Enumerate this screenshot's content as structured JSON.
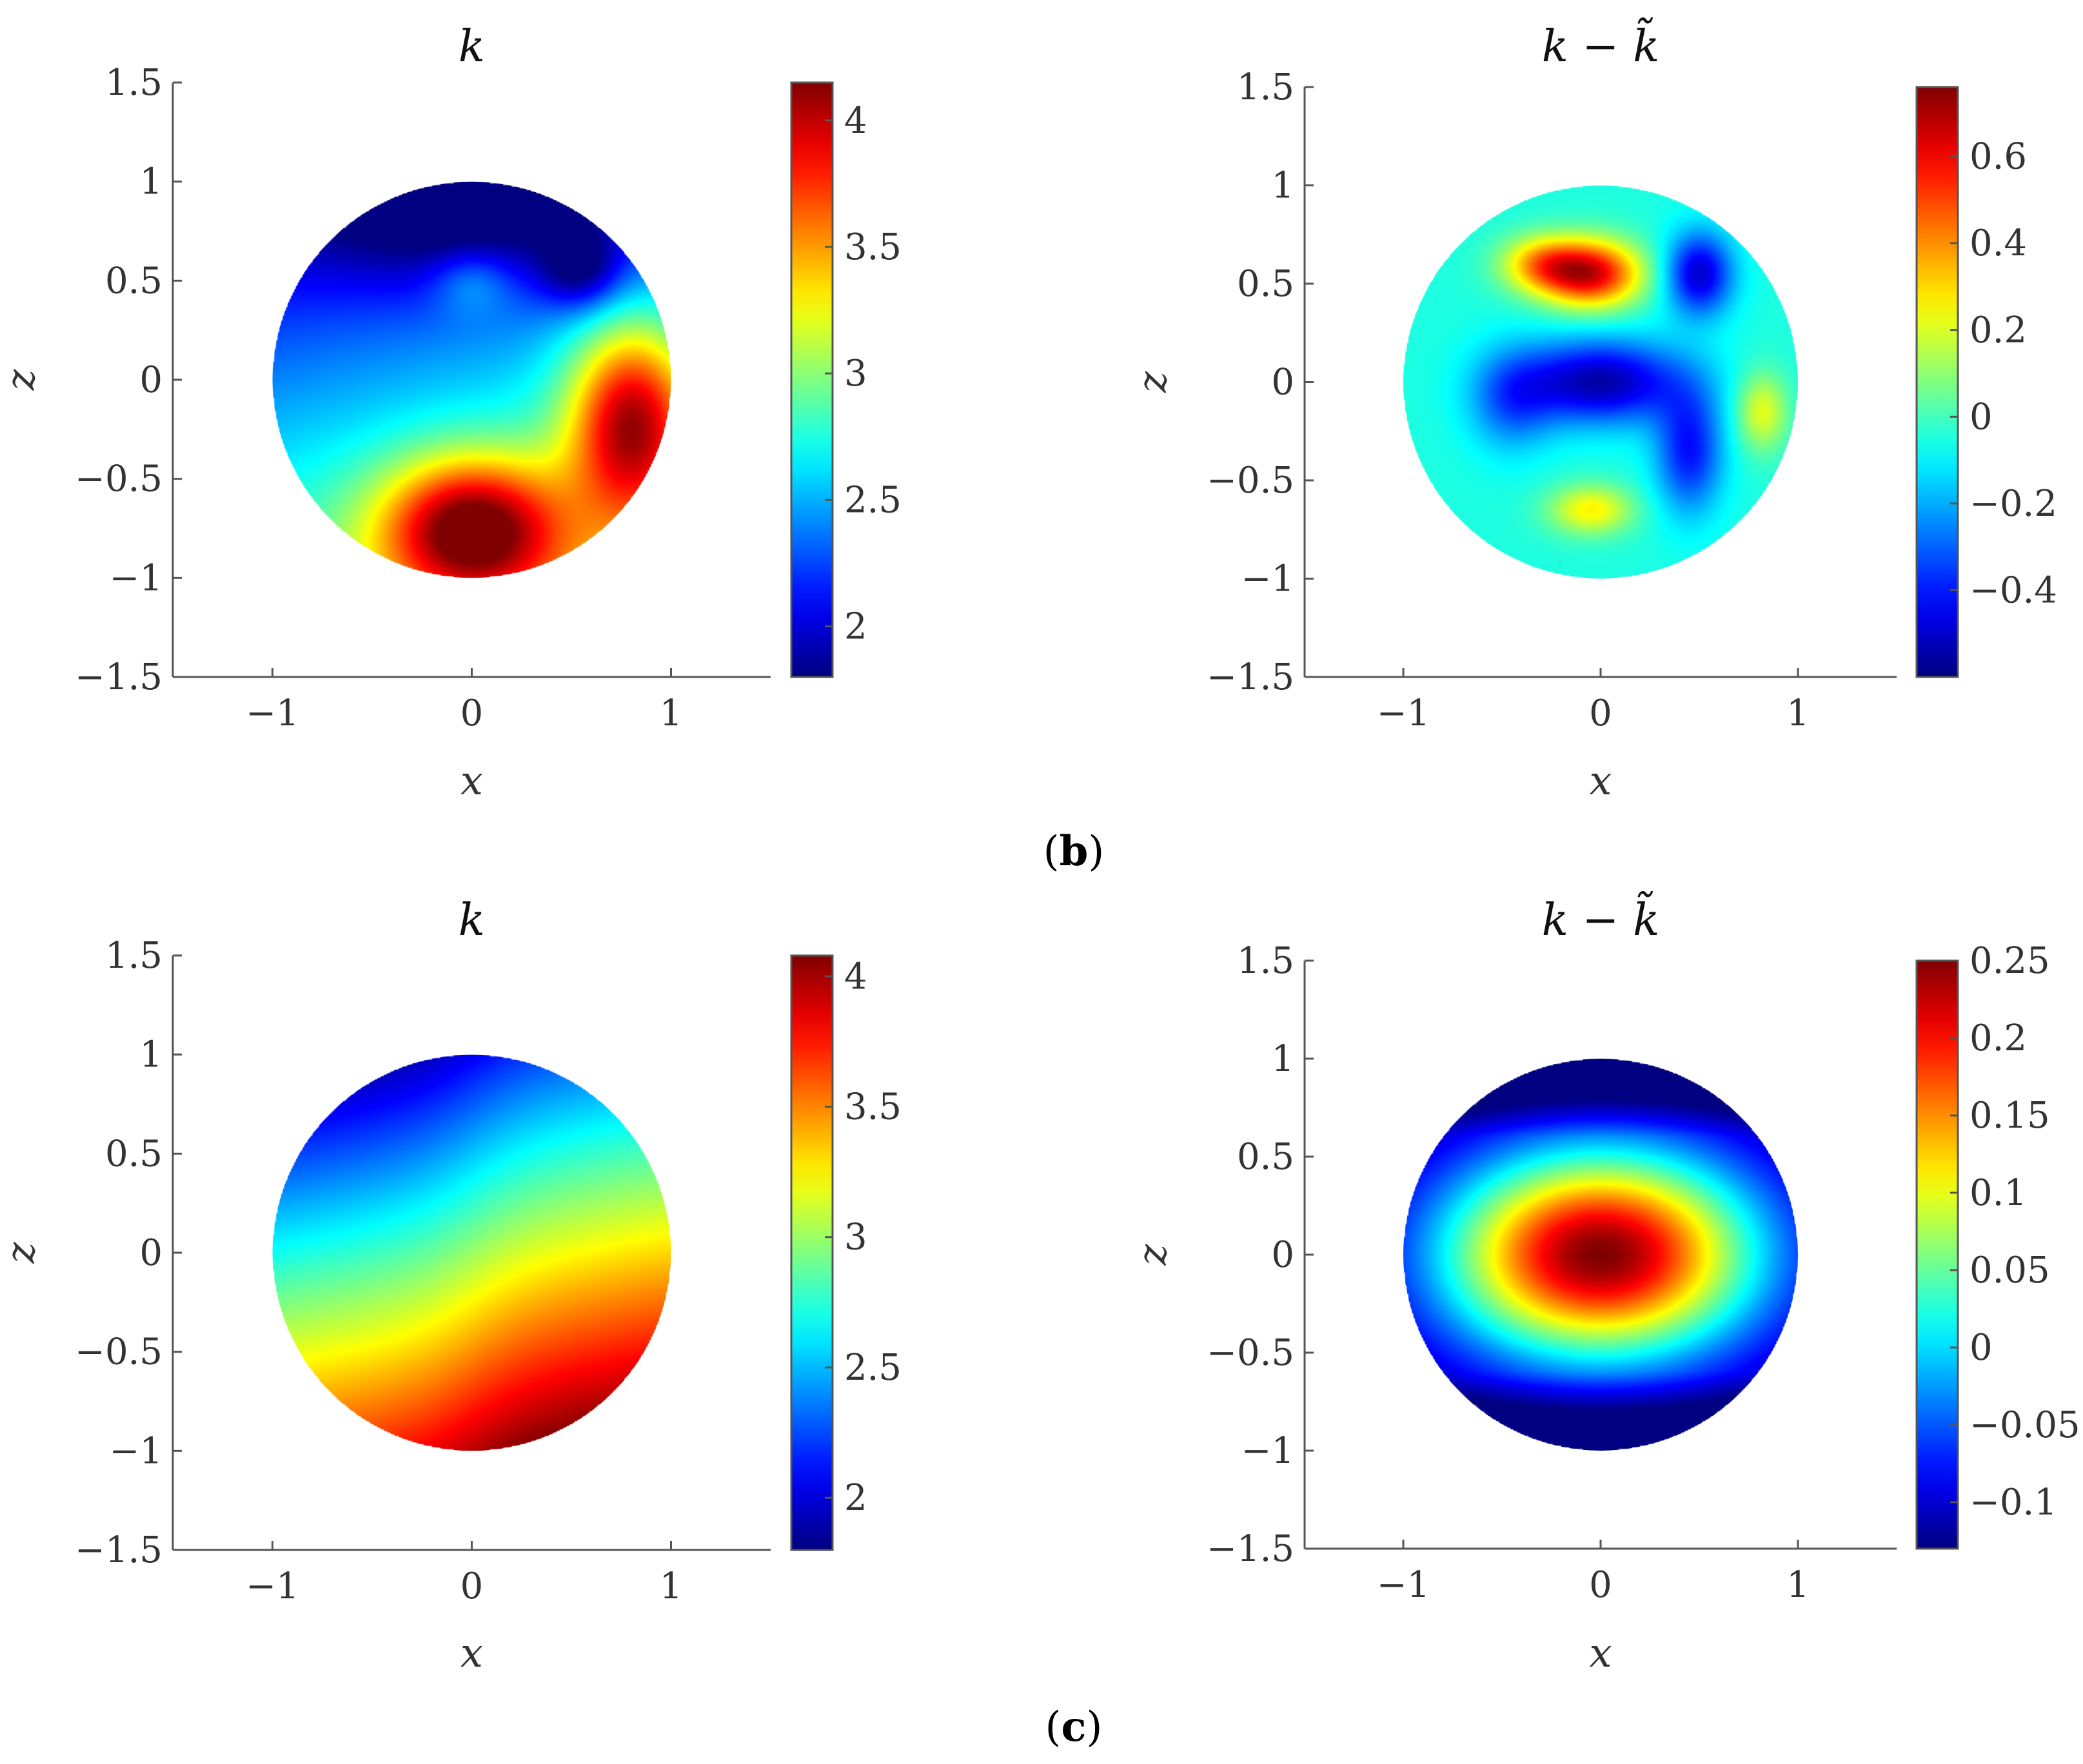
{
  "captions": [
    {
      "open": "(",
      "letter": "b",
      "close": ")"
    },
    {
      "open": "(",
      "letter": "c",
      "close": ")"
    }
  ],
  "chart_data": [
    {
      "type": "heatmap",
      "title": "k",
      "xlabel": "x",
      "ylabel": "z",
      "xlim": [
        -1.5,
        1.5
      ],
      "ylim": [
        -1.5,
        1.5
      ],
      "xticks": [
        -1,
        0,
        1
      ],
      "xtick_labels": [
        "−1",
        "0",
        "1"
      ],
      "yticks": [
        1.5,
        1,
        0.5,
        0,
        -0.5,
        -1,
        -1.5
      ],
      "ytick_labels": [
        "1.5",
        "1",
        "0.5",
        "0",
        "−0.5",
        "−1",
        "−1.5"
      ],
      "colormap": "jet",
      "domain": "unit disk",
      "colorbar": {
        "range": [
          1.8,
          4.15
        ],
        "ticks": [
          4,
          3.5,
          3,
          2.5,
          2
        ],
        "tick_labels": [
          "4",
          "3.5",
          "3",
          "2.5",
          "2"
        ]
      },
      "features": [
        {
          "x": 0,
          "z": 0.85,
          "value": 2.0,
          "kind": "blob",
          "sx": 0.6,
          "sz": 0.28
        },
        {
          "x": 0,
          "z": 0.5,
          "value": 2.9,
          "kind": "blob",
          "sx": 0.14,
          "sz": 0.12
        },
        {
          "x": 0.55,
          "z": 0.55,
          "value": 2.0,
          "kind": "blob",
          "sx": 0.14,
          "sz": 0.14
        },
        {
          "x": 0,
          "z": -0.75,
          "value": 4.1,
          "kind": "blob",
          "sx": 0.32,
          "sz": 0.25
        },
        {
          "x": 0.8,
          "z": -0.2,
          "value": 4.0,
          "kind": "blob",
          "sx": 0.22,
          "sz": 0.35
        }
      ]
    },
    {
      "type": "heatmap",
      "title": "k − k̃",
      "xlabel": "x",
      "ylabel": "z",
      "xlim": [
        -1.5,
        1.5
      ],
      "ylim": [
        -1.5,
        1.5
      ],
      "xticks": [
        -1,
        0,
        1
      ],
      "xtick_labels": [
        "−1",
        "0",
        "1"
      ],
      "yticks": [
        1.5,
        1,
        0.5,
        0,
        -0.5,
        -1,
        -1.5
      ],
      "ytick_labels": [
        "1.5",
        "1",
        "0.5",
        "0",
        "−0.5",
        "−1",
        "−1.5"
      ],
      "colormap": "jet",
      "domain": "unit disk",
      "colorbar": {
        "range": [
          -0.6,
          0.76
        ],
        "ticks": [
          0.6,
          0.4,
          0.2,
          0,
          -0.2,
          -0.4
        ],
        "tick_labels": [
          "0.6",
          "0.4",
          "0.2",
          "0",
          "−0.2",
          "−0.4"
        ]
      },
      "features": [
        {
          "x": -0.05,
          "z": 0.55,
          "value": 0.7,
          "kind": "blob",
          "sx": 0.18,
          "sz": 0.12
        },
        {
          "x": -0.3,
          "z": 0.6,
          "value": 0.35,
          "kind": "blob",
          "sx": 0.15,
          "sz": 0.1
        },
        {
          "x": 0.5,
          "z": 0.55,
          "value": -0.55,
          "kind": "blob",
          "sx": 0.12,
          "sz": 0.15
        },
        {
          "x": 0,
          "z": 0,
          "value": -0.6,
          "kind": "blob",
          "sx": 0.3,
          "sz": 0.15
        },
        {
          "x": 0.45,
          "z": -0.35,
          "value": -0.45,
          "kind": "blob",
          "sx": 0.12,
          "sz": 0.22
        },
        {
          "x": -0.45,
          "z": -0.1,
          "value": -0.3,
          "kind": "blob",
          "sx": 0.15,
          "sz": 0.18
        },
        {
          "x": -0.05,
          "z": -0.65,
          "value": 0.3,
          "kind": "blob",
          "sx": 0.15,
          "sz": 0.09
        },
        {
          "x": 0.82,
          "z": -0.15,
          "value": 0.25,
          "kind": "blob",
          "sx": 0.09,
          "sz": 0.14
        }
      ]
    },
    {
      "type": "heatmap",
      "title": "k",
      "xlabel": "x",
      "ylabel": "z",
      "xlim": [
        -1.5,
        1.5
      ],
      "ylim": [
        -1.5,
        1.5
      ],
      "xticks": [
        -1,
        0,
        1
      ],
      "xtick_labels": [
        "−1",
        "0",
        "1"
      ],
      "yticks": [
        1.5,
        1,
        0.5,
        0,
        -0.5,
        -1,
        -1.5
      ],
      "ytick_labels": [
        "1.5",
        "1",
        "0.5",
        "0",
        "−0.5",
        "−1",
        "−1.5"
      ],
      "colormap": "jet",
      "domain": "unit disk",
      "colorbar": {
        "range": [
          1.8,
          4.08
        ],
        "ticks": [
          4,
          3.5,
          3,
          2.5,
          2
        ],
        "tick_labels": [
          "4",
          "3.5",
          "3",
          "2.5",
          "2"
        ]
      },
      "field": {
        "kind": "gradient",
        "base": 3.0,
        "dx": 0.35,
        "dz": -1.0,
        "warp": 0.25,
        "min_at": [
          -0.4,
          0.9
        ],
        "max_at": [
          0.9,
          -0.9
        ]
      }
    },
    {
      "type": "heatmap",
      "title": "k − k̃",
      "xlabel": "x",
      "ylabel": "z",
      "xlim": [
        -1.5,
        1.5
      ],
      "ylim": [
        -1.5,
        1.5
      ],
      "xticks": [
        -1,
        0,
        1
      ],
      "xtick_labels": [
        "−1",
        "0",
        "1"
      ],
      "yticks": [
        1.5,
        1,
        0.5,
        0,
        -0.5,
        -1,
        -1.5
      ],
      "ytick_labels": [
        "1.5",
        "1",
        "0.5",
        "0",
        "−0.5",
        "−1",
        "−1.5"
      ],
      "colormap": "jet",
      "domain": "unit disk",
      "colorbar": {
        "range": [
          -0.13,
          0.25
        ],
        "ticks": [
          0.25,
          0.2,
          0.15,
          0.1,
          0.05,
          0,
          -0.05,
          -0.1
        ],
        "tick_labels": [
          "0.25",
          "0.2",
          "0.15",
          "0.1",
          "0.05",
          "0",
          "−0.05",
          "−0.1"
        ]
      },
      "field": {
        "kind": "radial",
        "peak": 0.25,
        "edge_min": -0.13,
        "sx": 0.75,
        "sz": 0.5
      }
    }
  ]
}
